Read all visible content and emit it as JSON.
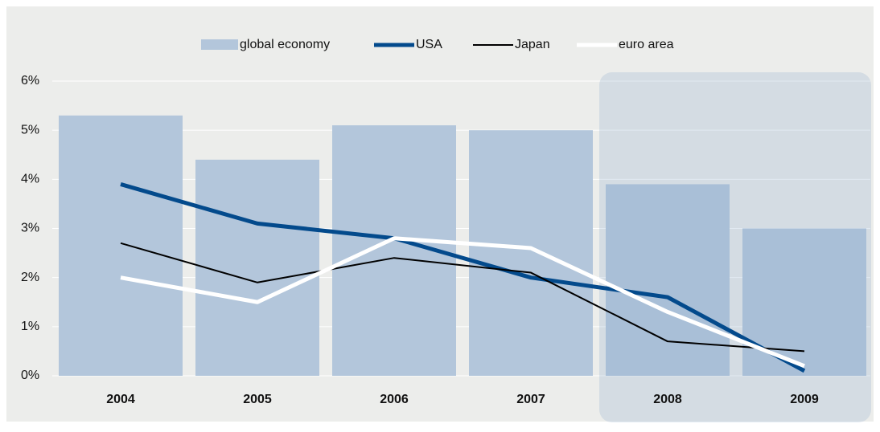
{
  "chart_data": {
    "type": "bar",
    "categories": [
      "2004",
      "2005",
      "2006",
      "2007",
      "2008",
      "2009"
    ],
    "series": [
      {
        "name": "global economy",
        "type": "bar",
        "color": "#b3c6db",
        "values": [
          5.3,
          4.4,
          5.1,
          5.0,
          3.9,
          3.0
        ]
      },
      {
        "name": "USA",
        "type": "line",
        "color": "#034a8c",
        "width": 5,
        "values": [
          3.9,
          3.1,
          2.8,
          2.0,
          1.6,
          0.1
        ]
      },
      {
        "name": "Japan",
        "type": "line",
        "color": "#000000",
        "width": 2,
        "values": [
          2.7,
          1.9,
          2.4,
          2.1,
          0.7,
          0.5
        ]
      },
      {
        "name": "euro area",
        "type": "line",
        "color": "#ffffff",
        "width": 5,
        "values": [
          2.0,
          1.5,
          2.8,
          2.6,
          1.3,
          0.2
        ]
      }
    ],
    "ylim": [
      0,
      6
    ],
    "yticks": [
      {
        "value": 0,
        "label": "0%"
      },
      {
        "value": 1,
        "label": "1%"
      },
      {
        "value": 2,
        "label": "2%"
      },
      {
        "value": 3,
        "label": "3%"
      },
      {
        "value": 4,
        "label": "4%"
      },
      {
        "value": 5,
        "label": "5%"
      },
      {
        "value": 6,
        "label": "6%"
      }
    ],
    "grid": true,
    "legend": "top"
  }
}
